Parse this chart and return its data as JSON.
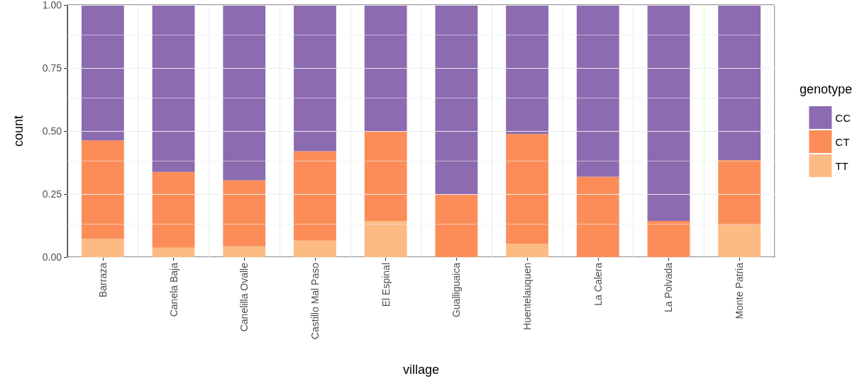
{
  "chart_data": {
    "type": "bar",
    "stacked": true,
    "xlabel": "village",
    "ylabel": "count",
    "legend_title": "genotype",
    "legend": "right",
    "grid": true,
    "categories": [
      "Barraza",
      "Canela Baja",
      "Canelilla Ovalle",
      "Castillo Mal Paso",
      "El Espinal",
      "Gualliguaica",
      "Huentelauquen",
      "La Calera",
      "La Polvada",
      "Monte Patria"
    ],
    "series": [
      {
        "name": "TT",
        "color": "#fdbb84",
        "values": [
          0.072,
          0.037,
          0.043,
          0.065,
          0.143,
          0,
          0.053,
          0,
          0,
          0.128
        ]
      },
      {
        "name": "CT",
        "color": "#fc8d59",
        "values": [
          0.391,
          0.301,
          0.262,
          0.355,
          0.357,
          0.25,
          0.435,
          0.319,
          0.143,
          0.257
        ]
      },
      {
        "name": "CC",
        "color": "#8c6bb1",
        "values": [
          0.537,
          0.662,
          0.695,
          0.58,
          0.5,
          0.75,
          0.512,
          0.681,
          0.857,
          0.615
        ]
      }
    ],
    "ylim": [
      0,
      1
    ],
    "yticks": [
      {
        "value": 0,
        "label": "0.00"
      },
      {
        "value": 0.25,
        "label": "0.25"
      },
      {
        "value": 0.5,
        "label": "0.50"
      },
      {
        "value": 0.75,
        "label": "0.75"
      },
      {
        "value": 1,
        "label": "1.00"
      }
    ]
  }
}
